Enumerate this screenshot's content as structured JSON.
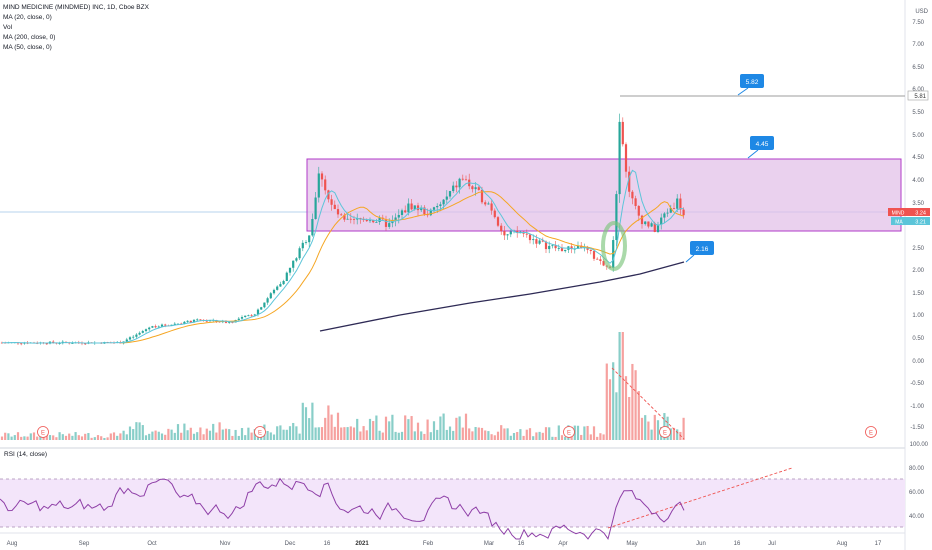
{
  "header": {
    "symbol_line": "MIND MEDICINE (MINDMED) INC, 1D, Cboe BZX",
    "indicators": [
      "Vol",
      "MA (20, close, 0)",
      "MA (200, close, 0)",
      "MA (50, close, 0)"
    ],
    "currency": "USD",
    "rsi_label": "RSI (14, close)"
  },
  "colors": {
    "up": "#26a69a",
    "down": "#ef5350",
    "ma20": "#5cc5d9",
    "ma200": "#2e2a55",
    "ma50": "#f5a623",
    "zone_fill": "#e1bee7",
    "zone_stroke": "#b03ac8",
    "callout": "#1e88e5",
    "rsi_line": "#8e3fa7",
    "rsi_band": "#f0e0fa"
  },
  "price_axis": {
    "ticks": [
      "7.50",
      "7.00",
      "6.50",
      "6.00",
      "5.50",
      "5.00",
      "4.50",
      "4.00",
      "3.50",
      "3.00",
      "2.50",
      "2.00",
      "1.50",
      "1.00",
      "0.50",
      "0.00",
      "-0.50",
      "-1.00",
      "-1.50"
    ],
    "top_tick": "7.50",
    "markers": {
      "high": "5.81",
      "symbol": "MIND",
      "last": "3.24",
      "ma": "MA",
      "ma_value": "3.21"
    }
  },
  "rsi_axis": {
    "ticks": [
      "100.00",
      "80.00",
      "60.00",
      "40.00"
    ]
  },
  "time_axis": {
    "labels": [
      "Aug",
      "Sep",
      "Oct",
      "Nov",
      "Dec",
      "16",
      "2021",
      "Feb",
      "Mar",
      "16",
      "Apr",
      "May",
      "Jun",
      "16",
      "Jul",
      "Aug",
      "17"
    ]
  },
  "callouts": [
    "5.82",
    "4.45",
    "2.16"
  ],
  "earnings_marks": [
    "E",
    "E",
    "E",
    "E",
    "E"
  ]
}
